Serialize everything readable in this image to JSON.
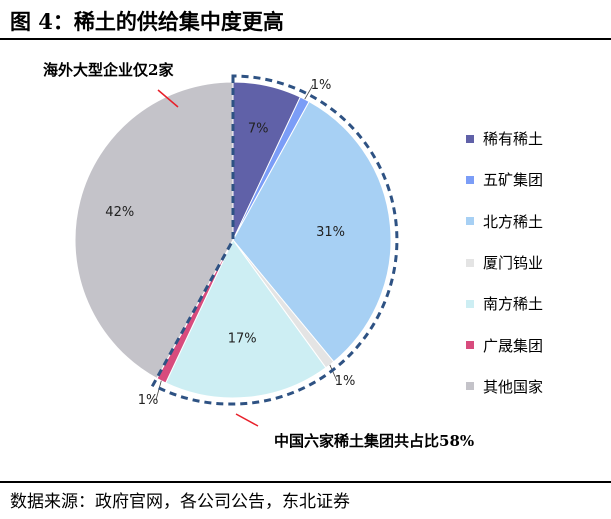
{
  "figure": {
    "title": "图 4：稀土的供给集中度更高",
    "source": "数据来源：政府官网，各公司公告，东北证券"
  },
  "annotations": {
    "foreign": "海外大型企业仅2家",
    "china": "中国六家稀土集团共占比58%"
  },
  "chart_data": {
    "type": "pie",
    "title": "",
    "start_angle_deg": 0,
    "direction": "clockwise",
    "legend_position": "right",
    "slices": [
      {
        "name": "稀有稀土",
        "value": 7,
        "label": "7%",
        "color": "#6061a8"
      },
      {
        "name": "五矿集团",
        "value": 1,
        "label": "1%",
        "color": "#7b9df7"
      },
      {
        "name": "北方稀土",
        "value": 31,
        "label": "31%",
        "color": "#a7d0f4"
      },
      {
        "name": "厦门钨业",
        "value": 1,
        "label": "1%",
        "color": "#e4e4e4"
      },
      {
        "name": "南方稀土",
        "value": 17,
        "label": "17%",
        "color": "#cdeef3"
      },
      {
        "name": "广晟集团",
        "value": 1,
        "label": "1%",
        "color": "#d84b7d"
      },
      {
        "name": "其他国家",
        "value": 42,
        "label": "42%",
        "color": "#c4c3c9"
      }
    ]
  }
}
